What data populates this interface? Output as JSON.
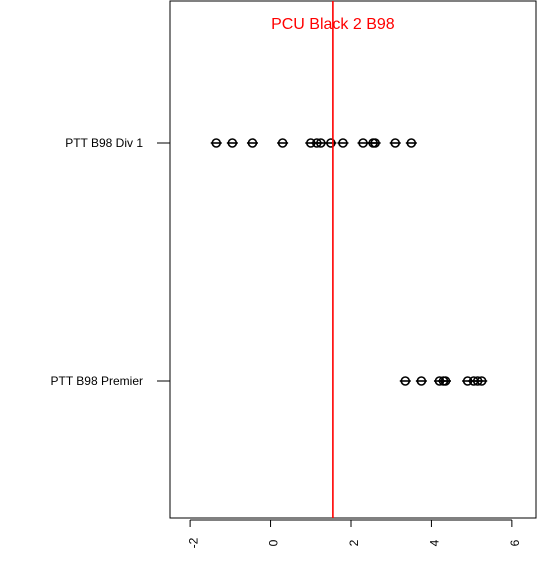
{
  "chart_data": {
    "type": "scatter",
    "title": "",
    "xlabel": "",
    "ylabel": "",
    "xlim": [
      -2.5,
      6.6
    ],
    "x_ticks": [
      -2,
      0,
      2,
      4,
      6
    ],
    "x_tick_labels": [
      "-2",
      "0",
      "2",
      "4",
      "6"
    ],
    "categories": [
      "PTT B98 Div 1",
      "PTT B98 Premier"
    ],
    "series": [
      {
        "category": "PTT B98 Div 1",
        "values": [
          -1.35,
          -0.95,
          -0.45,
          0.3,
          1.0,
          1.15,
          1.25,
          1.5,
          1.8,
          2.3,
          2.55,
          2.6,
          3.1,
          3.5
        ]
      },
      {
        "category": "PTT B98 Premier",
        "values": [
          3.35,
          3.75,
          4.2,
          4.3,
          4.35,
          4.9,
          5.05,
          5.15,
          5.25
        ]
      }
    ],
    "reference_line": {
      "value": 1.55,
      "label": "PCU Black 2 B98",
      "color": "#ff0000"
    },
    "point_color": "#000000",
    "grid": false,
    "legend": "none"
  }
}
